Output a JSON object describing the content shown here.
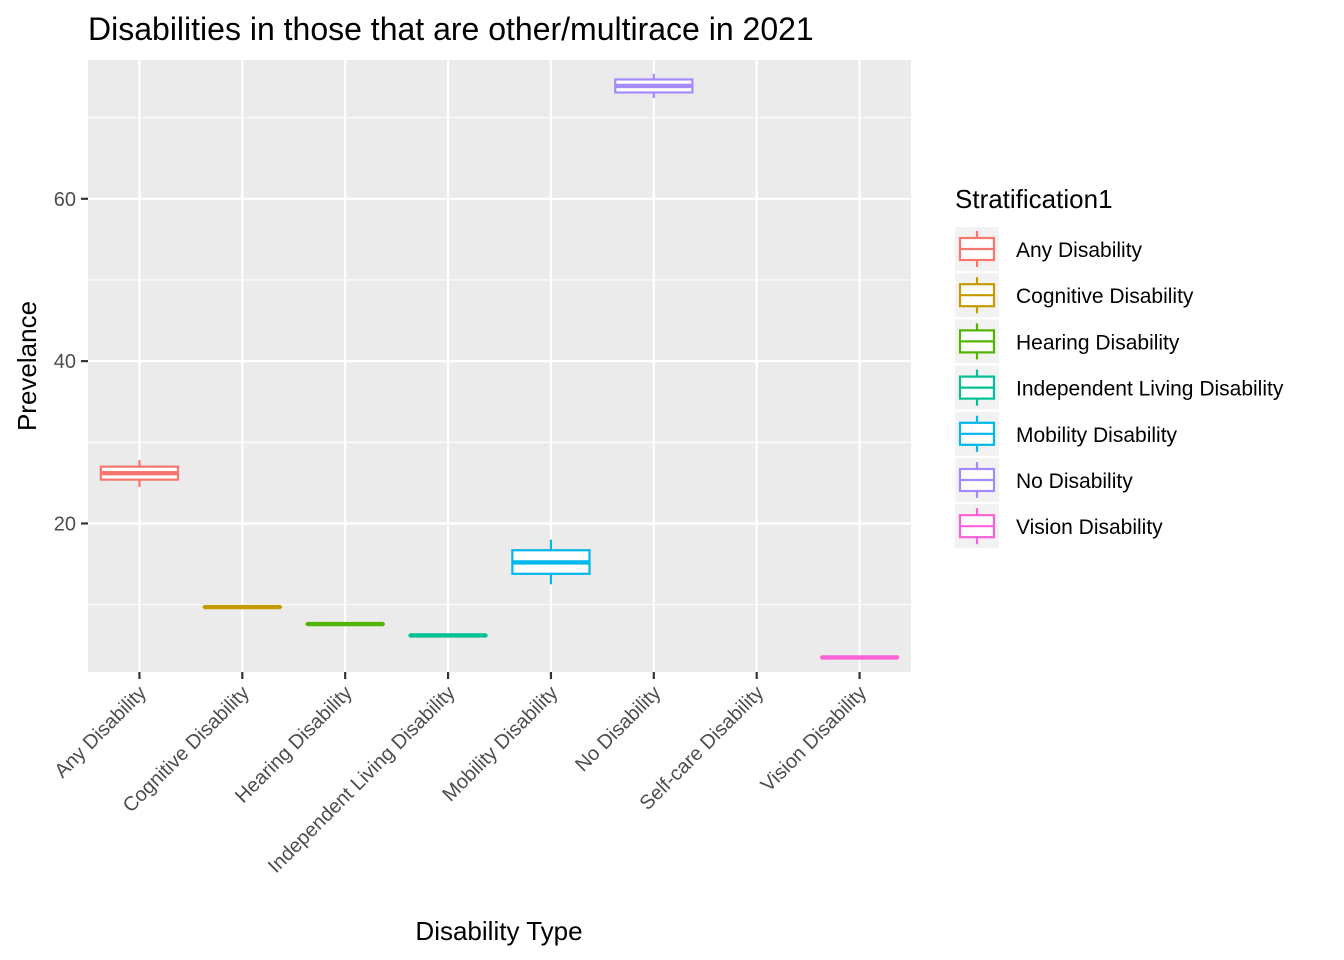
{
  "chart_data": {
    "type": "boxplot",
    "title": "Disabilities in those that are other/multirace in 2021",
    "xlabel": "Disability Type",
    "ylabel": "Prevelance",
    "categories": [
      "Any Disability",
      "Cognitive Disability",
      "Hearing Disability",
      "Independent Living Disability",
      "Mobility Disability",
      "No Disability",
      "Self-care Disability",
      "Vision Disability"
    ],
    "y_ticks": [
      20,
      40,
      60
    ],
    "ylim": [
      1.7,
      77.1
    ],
    "grid": true,
    "legend": {
      "title": "Stratification1",
      "placement": "right",
      "items": [
        {
          "label": "Any Disability",
          "color": "#F8766D"
        },
        {
          "label": "Cognitive Disability",
          "color": "#C49A00"
        },
        {
          "label": "Hearing Disability",
          "color": "#53B400"
        },
        {
          "label": "Independent Living Disability",
          "color": "#00C094"
        },
        {
          "label": "Mobility Disability",
          "color": "#00B6EB"
        },
        {
          "label": "No Disability",
          "color": "#A58AFF"
        },
        {
          "label": "Vision Disability",
          "color": "#FB61D7"
        }
      ]
    },
    "boxes": [
      {
        "category": "Any Disability",
        "color": "#F8766D",
        "min": 24.5,
        "q1": 25.4,
        "median": 26.2,
        "q3": 27.0,
        "max": 27.8
      },
      {
        "category": "Cognitive Disability",
        "color": "#C49A00",
        "min": 9.7,
        "q1": 9.7,
        "median": 9.7,
        "q3": 9.7,
        "max": 9.7
      },
      {
        "category": "Hearing Disability",
        "color": "#53B400",
        "min": 7.6,
        "q1": 7.6,
        "median": 7.6,
        "q3": 7.6,
        "max": 7.6
      },
      {
        "category": "Independent Living Disability",
        "color": "#00C094",
        "min": 6.2,
        "q1": 6.2,
        "median": 6.2,
        "q3": 6.2,
        "max": 6.2
      },
      {
        "category": "Mobility Disability",
        "color": "#00B6EB",
        "min": 12.5,
        "q1": 13.8,
        "median": 15.2,
        "q3": 16.7,
        "max": 18.0
      },
      {
        "category": "No Disability",
        "color": "#A58AFF",
        "min": 72.4,
        "q1": 73.1,
        "median": 73.9,
        "q3": 74.7,
        "max": 75.4
      },
      {
        "category": "Vision Disability",
        "color": "#FB61D7",
        "min": 3.5,
        "q1": 3.5,
        "median": 3.5,
        "q3": 3.5,
        "max": 3.5
      }
    ]
  }
}
